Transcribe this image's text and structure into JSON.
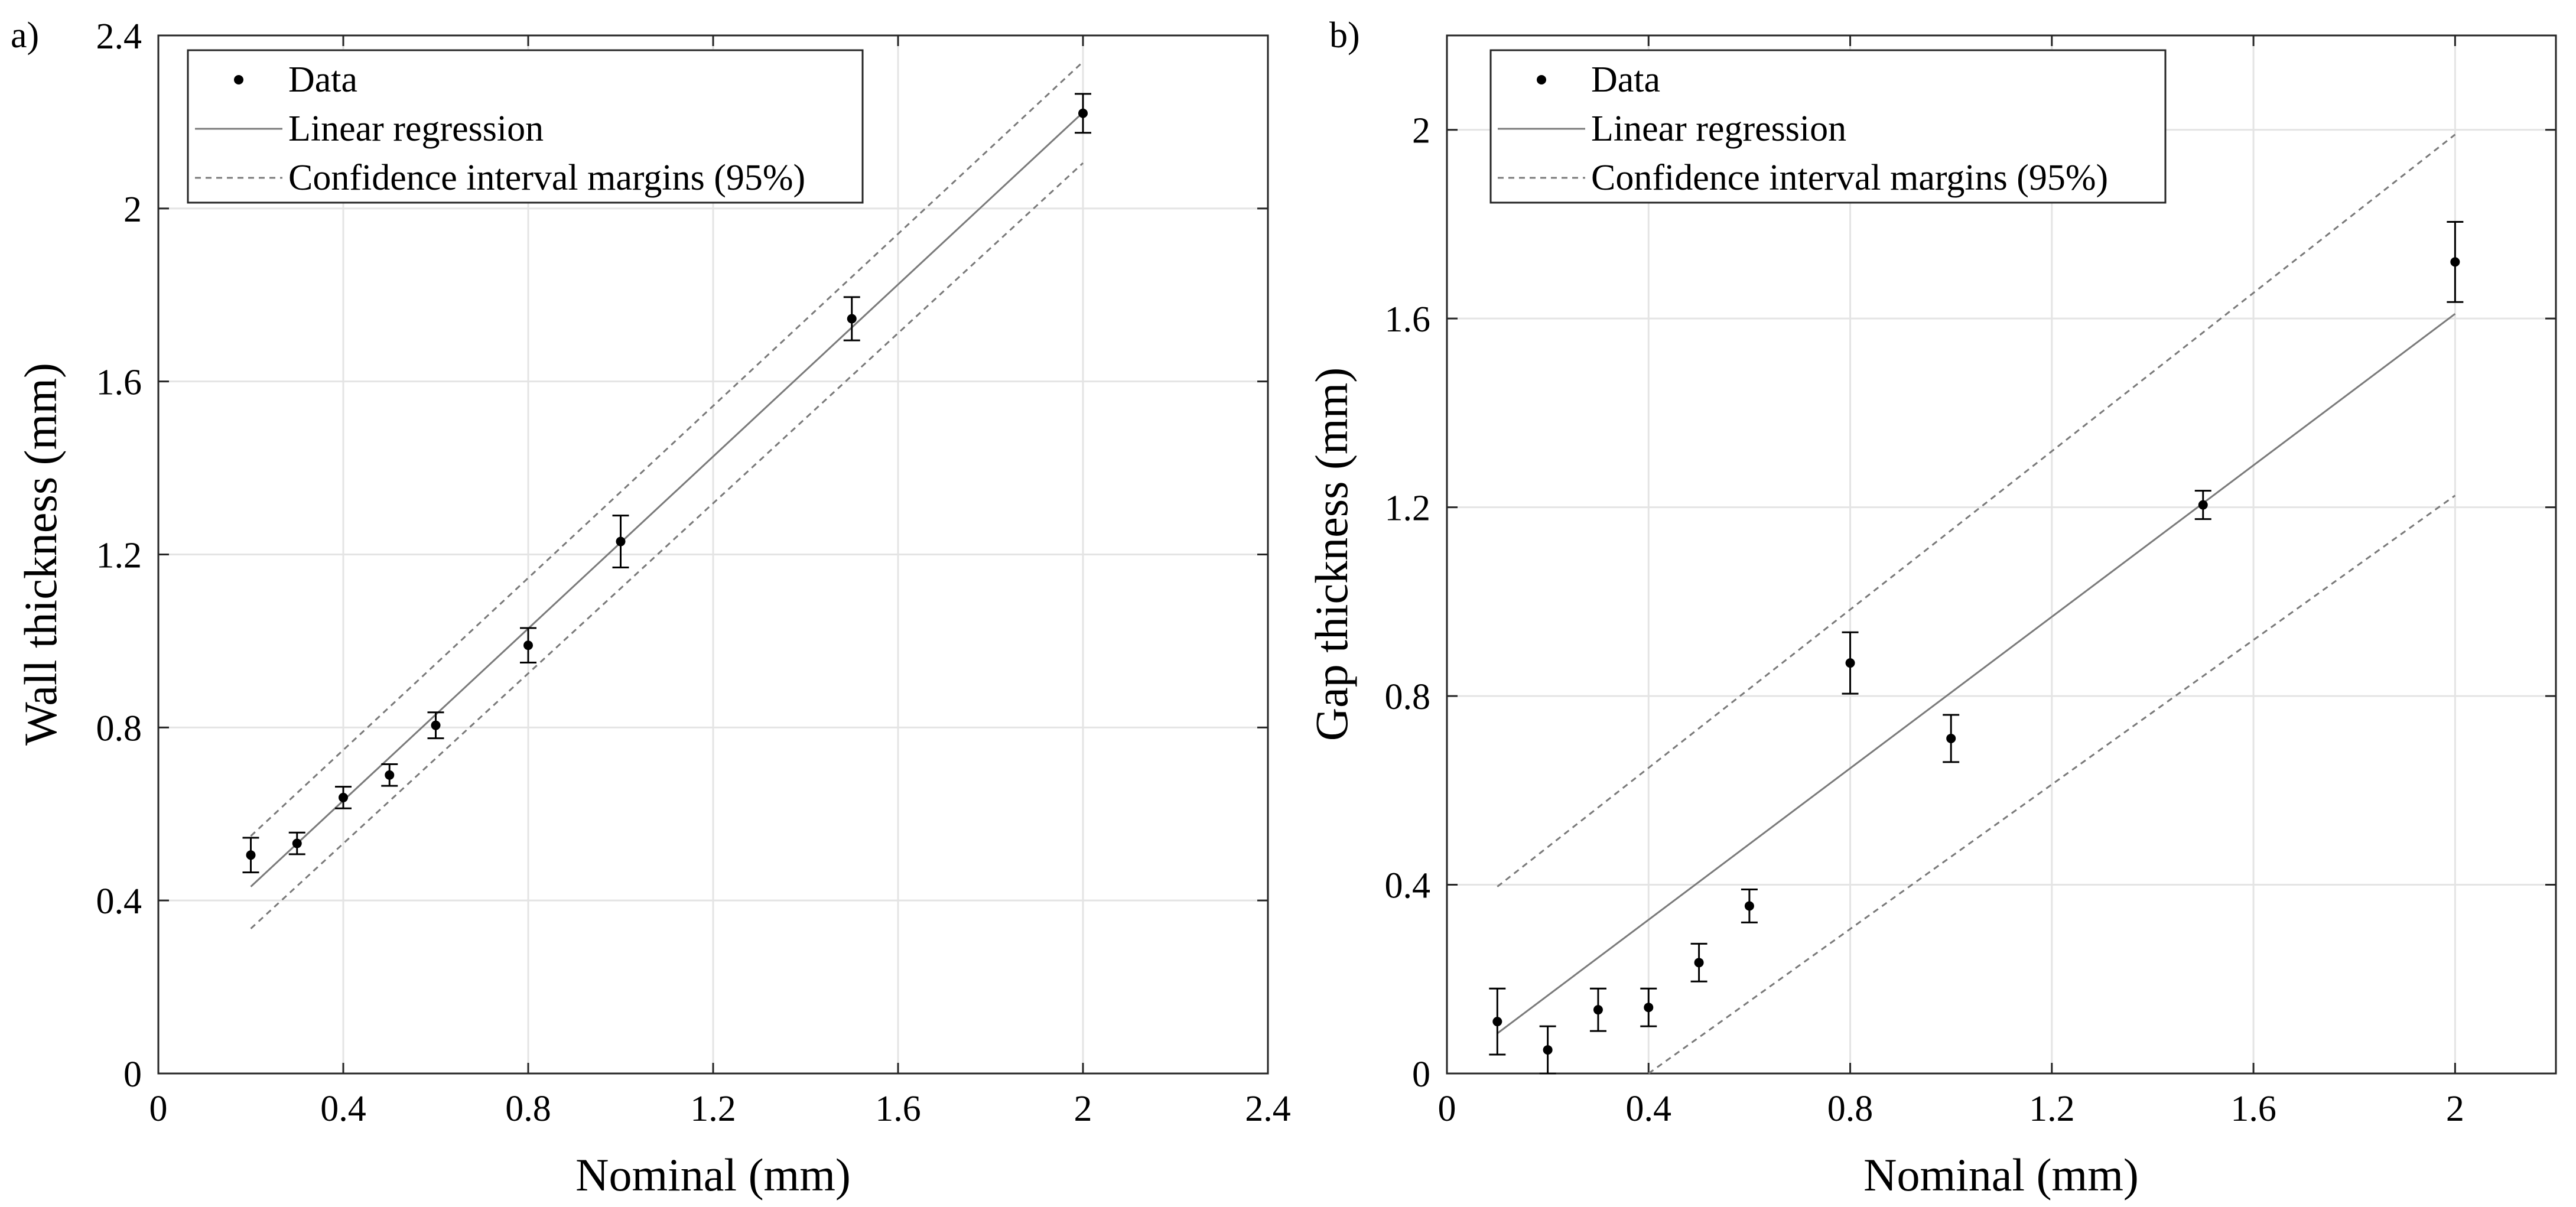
{
  "figure": {
    "colors": {
      "background": "#ffffff",
      "grid": "#e4e4e4",
      "axis": "#262626",
      "regression": "#7a7a7a",
      "ci": "#7a7a7a",
      "data": "#000000"
    }
  },
  "chart_data": [
    {
      "type": "scatter",
      "panel_label": "a)",
      "title": "",
      "xlabel": "Nominal (mm)",
      "ylabel": "Wall thickness (mm)",
      "xlim": [
        0,
        2.4
      ],
      "ylim": [
        0,
        2.4
      ],
      "xticks": [
        0,
        0.4,
        0.8,
        1.2,
        1.6,
        2,
        2.4
      ],
      "xtick_labels": [
        "0",
        "0.4",
        "0.8",
        "1.2",
        "1.6",
        "2",
        "2.4"
      ],
      "yticks": [
        0,
        0.4,
        0.8,
        1.2,
        1.6,
        2,
        2.4
      ],
      "ytick_labels": [
        "0",
        "0.4",
        "0.8",
        "1.2",
        "1.6",
        "2",
        "2.4"
      ],
      "grid": true,
      "legend_position": "top-left",
      "legend": {
        "data": "Data",
        "regression": "Linear regression",
        "ci": "Confidence interval margins (95%)"
      },
      "series": [
        {
          "name": "Data",
          "x": [
            0.2,
            0.3,
            0.4,
            0.5,
            0.6,
            0.8,
            1.0,
            1.5,
            2.0
          ],
          "y": [
            0.505,
            0.532,
            0.638,
            0.69,
            0.805,
            0.99,
            1.23,
            1.745,
            2.22
          ],
          "err": [
            0.04,
            0.025,
            0.025,
            0.025,
            0.03,
            0.04,
            0.06,
            0.05,
            0.045
          ]
        },
        {
          "name": "Linear regression",
          "x": [
            0.2,
            2.0
          ],
          "y": [
            0.432,
            2.222
          ]
        },
        {
          "name": "Upper confidence margin",
          "x": [
            0.2,
            2.0
          ],
          "y": [
            0.549,
            2.339
          ]
        },
        {
          "name": "Lower confidence margin",
          "x": [
            0.2,
            2.0
          ],
          "y": [
            0.335,
            2.105
          ]
        }
      ]
    },
    {
      "type": "scatter",
      "panel_label": "b)",
      "title": "",
      "xlabel": "Nominal (mm)",
      "ylabel": "Gap thickness (mm)",
      "xlim": [
        0,
        2.2
      ],
      "ylim": [
        0,
        2.2
      ],
      "xticks": [
        0,
        0.4,
        0.8,
        1.2,
        1.6,
        2
      ],
      "xtick_labels": [
        "0",
        "0.4",
        "0.8",
        "1.2",
        "1.6",
        "2"
      ],
      "yticks": [
        0,
        0.4,
        0.8,
        1.2,
        1.6,
        2
      ],
      "ytick_labels": [
        "0",
        "0.4",
        "0.8",
        "1.2",
        "1.6",
        "2"
      ],
      "grid": true,
      "legend_position": "top-left",
      "legend": {
        "data": "Data",
        "regression": "Linear regression",
        "ci": "Confidence interval margins (95%)"
      },
      "series": [
        {
          "name": "Data",
          "x": [
            0.1,
            0.2,
            0.3,
            0.4,
            0.5,
            0.6,
            0.8,
            1.0,
            1.5,
            2.0
          ],
          "y": [
            0.11,
            0.05,
            0.135,
            0.14,
            0.235,
            0.355,
            0.87,
            0.71,
            1.205,
            1.72
          ],
          "err": [
            0.07,
            0.05,
            0.045,
            0.04,
            0.04,
            0.035,
            0.065,
            0.05,
            0.03,
            0.085
          ]
        },
        {
          "name": "Linear regression",
          "x": [
            0.1,
            2.0
          ],
          "y": [
            0.085,
            1.61
          ]
        },
        {
          "name": "Upper confidence margin",
          "x": [
            0.1,
            2.0
          ],
          "y": [
            0.396,
            1.99
          ]
        },
        {
          "name": "Lower confidence margin",
          "x": [
            0.4,
            2.0
          ],
          "y": [
            0.0,
            1.225
          ]
        }
      ]
    }
  ]
}
